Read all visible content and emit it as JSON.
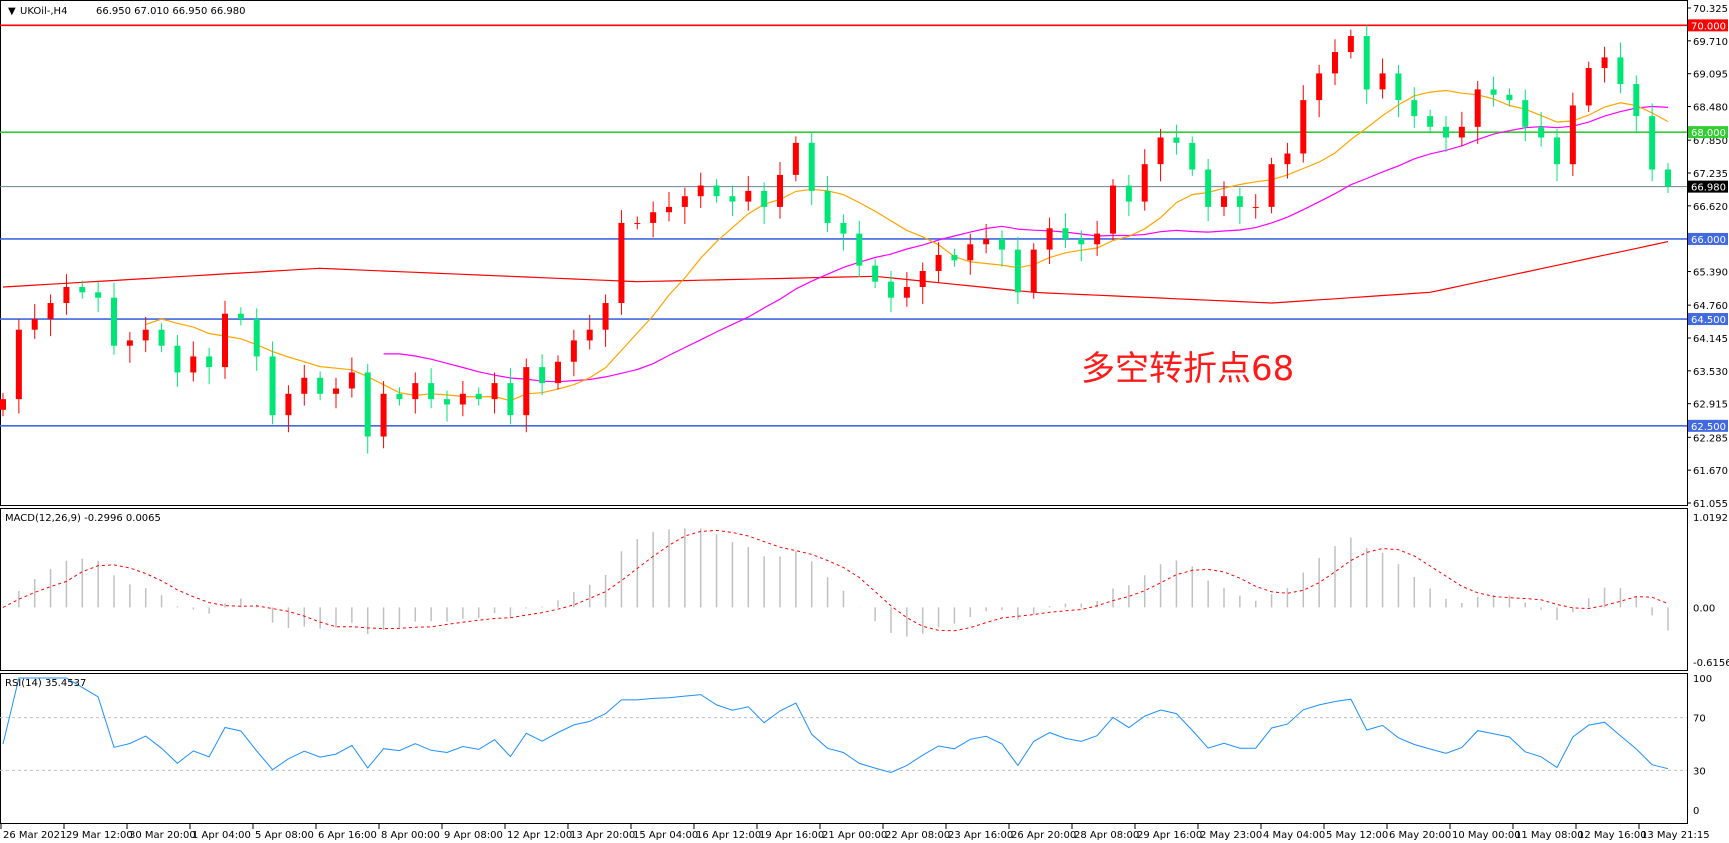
{
  "header": {
    "symbol": "UKOil-,H4",
    "ohlc_text": "66.950 67.010 66.950 66.980"
  },
  "annotation": {
    "text": "多空转折点68",
    "color": "#ff1a1a"
  },
  "colors": {
    "bull": "#ff0000",
    "bear": "#00e676",
    "ma_fast": "#ffa500",
    "ma_mid": "#ff00ff",
    "ma_slow": "#ff0000",
    "macd_hist": "#c0c0c0",
    "macd_signal": "#ff0000",
    "rsi": "#1e90ff"
  },
  "chart_data": [
    {
      "type": "candlestick",
      "title": "UKOil-,H4",
      "ylim": [
        61.055,
        70.325
      ],
      "price_ticks": [
        "70.325",
        "69.710",
        "69.095",
        "68.480",
        "67.850",
        "67.235",
        "66.620",
        "65.390",
        "64.760",
        "64.145",
        "63.530",
        "62.915",
        "62.285",
        "61.670",
        "61.055"
      ],
      "time_labels": [
        "26 Mar 2021",
        "29 Mar 12:00",
        "30 Mar 20:00",
        "1 Apr 04:00",
        "5 Apr 08:00",
        "6 Apr 16:00",
        "8 Apr 00:00",
        "9 Apr 08:00",
        "12 Apr 12:00",
        "13 Apr 20:00",
        "15 Apr 04:00",
        "16 Apr 12:00",
        "19 Apr 16:00",
        "21 Apr 00:00",
        "22 Apr 08:00",
        "23 Apr 16:00",
        "26 Apr 20:00",
        "28 Apr 08:00",
        "29 Apr 16:00",
        "2 May 23:00",
        "4 May 04:00",
        "5 May 12:00",
        "6 May 20:00",
        "10 May 00:00",
        "11 May 08:00",
        "12 May 16:00",
        "13 May 21:15"
      ],
      "first_open": 62.8,
      "close": [
        63.0,
        64.3,
        64.5,
        64.8,
        65.1,
        65.0,
        64.9,
        64.0,
        64.1,
        64.3,
        64.0,
        63.5,
        63.8,
        63.6,
        64.6,
        64.5,
        63.8,
        62.7,
        63.1,
        63.4,
        63.1,
        63.2,
        63.5,
        62.3,
        63.1,
        63.0,
        63.3,
        63.0,
        62.9,
        63.1,
        63.0,
        63.3,
        62.7,
        63.6,
        63.3,
        63.7,
        64.1,
        64.3,
        64.8,
        66.3,
        66.3,
        66.5,
        66.6,
        66.8,
        67.0,
        66.8,
        66.7,
        66.9,
        66.6,
        67.2,
        67.8,
        66.9,
        66.3,
        66.1,
        65.5,
        65.2,
        64.9,
        65.1,
        65.4,
        65.7,
        65.6,
        65.9,
        66.0,
        65.8,
        65.0,
        65.8,
        66.2,
        66.0,
        65.9,
        66.1,
        67.0,
        66.7,
        67.4,
        67.9,
        67.8,
        67.3,
        66.6,
        66.8,
        66.6,
        66.6,
        67.4,
        67.6,
        68.6,
        69.1,
        69.5,
        69.8,
        68.8,
        69.1,
        68.6,
        68.3,
        68.1,
        67.9,
        68.1,
        68.8,
        68.7,
        68.6,
        68.1,
        67.9,
        67.4,
        68.5,
        69.2,
        69.4,
        68.9,
        68.3,
        67.3,
        66.98
      ],
      "ma_slow": [
        [
          0,
          65.1
        ],
        [
          20,
          65.45
        ],
        [
          40,
          65.2
        ],
        [
          55,
          65.3
        ],
        [
          65,
          65.0
        ],
        [
          80,
          64.8
        ],
        [
          90,
          65.0
        ],
        [
          105,
          65.95
        ]
      ],
      "levels": [
        {
          "price": 70.0,
          "label": "70.000",
          "color": "#ff0000"
        },
        {
          "price": 68.0,
          "label": "68.000",
          "color": "#32cd32"
        },
        {
          "price": 66.98,
          "label": "66.980",
          "color": "#708090",
          "label_bg": "#000000"
        },
        {
          "price": 66.0,
          "label": "66.000",
          "color": "#4169e1"
        },
        {
          "price": 64.5,
          "label": "64.500",
          "color": "#4169e1"
        },
        {
          "price": 62.5,
          "label": "62.500",
          "color": "#4169e1"
        }
      ]
    },
    {
      "type": "bar+line",
      "title": "MACD(12,26,9) -0.2996 0.0065",
      "ylim": [
        -0.6156,
        1.0192
      ],
      "ticks": [
        "1.0192",
        "0.00",
        "-0.6156"
      ]
    },
    {
      "type": "line",
      "title": "RSI(14) 35.4537",
      "ylim": [
        0,
        100
      ],
      "ticks": [
        "100",
        "70",
        "30",
        "0"
      ],
      "levels": [
        70,
        30
      ]
    }
  ]
}
